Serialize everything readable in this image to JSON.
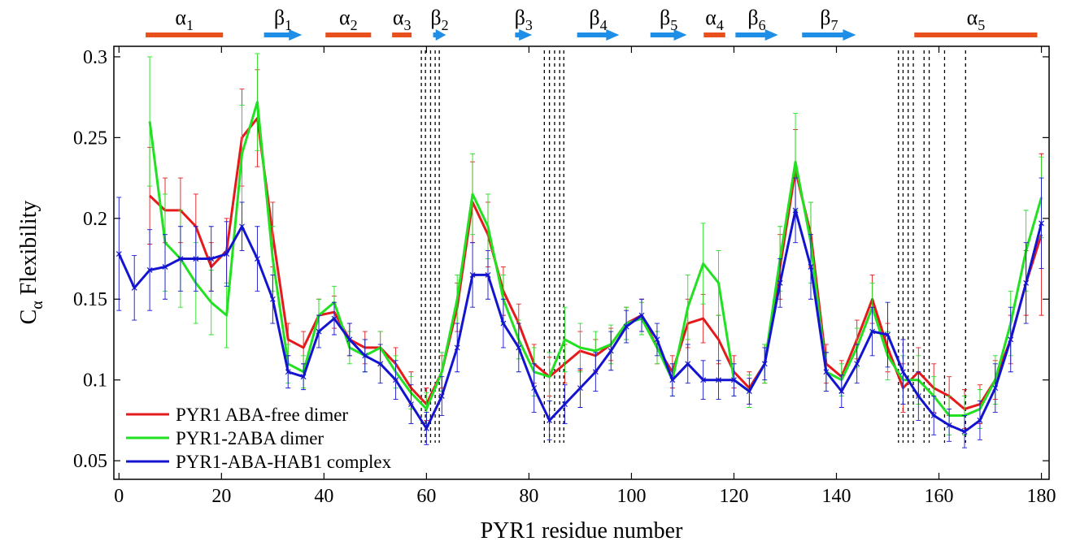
{
  "chart_data": {
    "type": "line",
    "xlabel": "PYR1 residue number",
    "ylabel": {
      "text": "C",
      "sub": "α",
      "rest": " Flexibility"
    },
    "xlim": [
      -1,
      181.5
    ],
    "ylim": [
      0.0385,
      0.3065
    ],
    "xticks": [
      0,
      20,
      40,
      60,
      80,
      100,
      120,
      140,
      160,
      180
    ],
    "yticks": [
      0.05,
      0.1,
      0.15,
      0.2,
      0.25,
      0.3
    ],
    "legend": "lower left",
    "x": [
      0,
      3,
      6,
      9,
      12,
      15,
      18,
      21,
      24,
      27,
      30,
      33,
      36,
      39,
      42,
      45,
      48,
      51,
      54,
      57,
      60,
      63,
      66,
      69,
      72,
      75,
      78,
      81,
      84,
      87,
      90,
      93,
      96,
      99,
      102,
      105,
      108,
      111,
      114,
      117,
      120,
      123,
      126,
      129,
      132,
      135,
      138,
      141,
      144,
      147,
      150,
      153,
      156,
      159,
      162,
      165,
      168,
      171,
      174,
      177,
      180
    ],
    "series": [
      {
        "name": "PYR1 ABA-free dimer",
        "color": "#e41a1c",
        "values": [
          null,
          null,
          0.214,
          0.205,
          0.205,
          0.195,
          0.17,
          0.18,
          0.25,
          0.262,
          0.19,
          0.125,
          0.12,
          0.14,
          0.142,
          0.125,
          0.12,
          0.12,
          0.11,
          0.095,
          0.085,
          0.105,
          0.145,
          0.21,
          0.19,
          0.155,
          0.135,
          0.11,
          0.102,
          0.11,
          0.118,
          0.115,
          0.122,
          0.135,
          0.14,
          0.12,
          0.105,
          0.135,
          0.138,
          0.125,
          0.105,
          0.095,
          0.11,
          0.17,
          0.23,
          0.19,
          0.11,
          0.102,
          0.125,
          0.15,
          0.12,
          0.095,
          0.105,
          0.095,
          0.09,
          0.082,
          0.085,
          0.1,
          0.125,
          0.16,
          0.19
        ],
        "errors": [
          null,
          null,
          0.03,
          0.02,
          0.02,
          0.02,
          0.015,
          0.02,
          0.03,
          0.03,
          0.02,
          0.01,
          0.01,
          0.01,
          0.01,
          0.01,
          0.01,
          0.01,
          0.01,
          0.01,
          0.01,
          0.01,
          0.015,
          0.025,
          0.02,
          0.015,
          0.012,
          0.012,
          0.012,
          0.012,
          0.012,
          0.01,
          0.01,
          0.01,
          0.01,
          0.01,
          0.01,
          0.015,
          0.015,
          0.015,
          0.01,
          0.01,
          0.012,
          0.02,
          0.025,
          0.02,
          0.012,
          0.01,
          0.012,
          0.015,
          0.015,
          0.015,
          0.015,
          0.015,
          0.012,
          0.012,
          0.012,
          0.012,
          0.015,
          0.02,
          0.05
        ]
      },
      {
        "name": "PYR1-2ABA dimer",
        "color": "#22e022",
        "values": [
          null,
          null,
          0.26,
          0.185,
          0.175,
          0.16,
          0.148,
          0.14,
          0.24,
          0.272,
          0.175,
          0.11,
          0.105,
          0.14,
          0.148,
          0.12,
          0.115,
          0.12,
          0.105,
          0.092,
          0.082,
          0.105,
          0.15,
          0.215,
          0.195,
          0.15,
          0.125,
          0.105,
          0.102,
          0.125,
          0.12,
          0.118,
          0.122,
          0.135,
          0.138,
          0.12,
          0.1,
          0.145,
          0.172,
          0.16,
          0.1,
          0.093,
          0.11,
          0.175,
          0.235,
          0.185,
          0.105,
          0.1,
          0.12,
          0.145,
          0.115,
          0.1,
          0.1,
          0.09,
          0.078,
          0.078,
          0.082,
          0.1,
          0.135,
          0.18,
          0.213
        ],
        "errors": [
          null,
          null,
          0.04,
          0.03,
          0.03,
          0.025,
          0.02,
          0.02,
          0.03,
          0.03,
          0.02,
          0.012,
          0.01,
          0.01,
          0.01,
          0.01,
          0.01,
          0.01,
          0.01,
          0.01,
          0.01,
          0.012,
          0.015,
          0.025,
          0.02,
          0.015,
          0.012,
          0.015,
          0.015,
          0.02,
          0.015,
          0.012,
          0.012,
          0.01,
          0.01,
          0.01,
          0.01,
          0.02,
          0.025,
          0.02,
          0.01,
          0.01,
          0.012,
          0.02,
          0.03,
          0.025,
          0.012,
          0.01,
          0.012,
          0.015,
          0.015,
          0.015,
          0.015,
          0.012,
          0.012,
          0.012,
          0.012,
          0.015,
          0.02,
          0.025,
          0.025
        ]
      },
      {
        "name": "PYR1-ABA-HAB1 complex",
        "color": "#1414d0",
        "values": [
          0.178,
          0.157,
          0.168,
          0.17,
          0.175,
          0.175,
          0.175,
          0.178,
          0.195,
          0.175,
          0.15,
          0.105,
          0.102,
          0.13,
          0.138,
          0.125,
          0.115,
          0.11,
          0.1,
          0.085,
          0.07,
          0.09,
          0.12,
          0.165,
          0.165,
          0.135,
          0.12,
          0.095,
          0.075,
          0.085,
          0.095,
          0.105,
          0.118,
          0.133,
          0.14,
          0.125,
          0.1,
          0.11,
          0.1,
          0.1,
          0.1,
          0.093,
          0.11,
          0.16,
          0.205,
          0.17,
          0.105,
          0.093,
          0.11,
          0.13,
          0.128,
          0.105,
          0.09,
          0.078,
          0.072,
          0.068,
          0.075,
          0.095,
          0.125,
          0.16,
          0.197
        ],
        "errors": [
          0.035,
          0.02,
          0.025,
          0.02,
          0.02,
          0.02,
          0.02,
          0.02,
          0.015,
          0.02,
          0.015,
          0.01,
          0.008,
          0.01,
          0.01,
          0.01,
          0.01,
          0.012,
          0.012,
          0.012,
          0.01,
          0.012,
          0.015,
          0.02,
          0.015,
          0.015,
          0.015,
          0.015,
          0.012,
          0.012,
          0.012,
          0.012,
          0.012,
          0.01,
          0.01,
          0.01,
          0.01,
          0.012,
          0.012,
          0.012,
          0.01,
          0.008,
          0.01,
          0.015,
          0.02,
          0.02,
          0.012,
          0.01,
          0.012,
          0.015,
          0.02,
          0.02,
          0.015,
          0.012,
          0.01,
          0.01,
          0.012,
          0.015,
          0.02,
          0.025,
          0.028
        ]
      }
    ],
    "secondary_structure": [
      {
        "symbol": "α",
        "index": "1",
        "kind": "helix",
        "start": 5.2,
        "end": 20.3
      },
      {
        "symbol": "β",
        "index": "1",
        "kind": "strand",
        "start": 28.3,
        "end": 35.7
      },
      {
        "symbol": "α",
        "index": "2",
        "kind": "helix",
        "start": 40.3,
        "end": 49.2
      },
      {
        "symbol": "α",
        "index": "3",
        "kind": "helix",
        "start": 53.3,
        "end": 57.1
      },
      {
        "symbol": "β",
        "index": "2",
        "kind": "strand",
        "start": 61.3,
        "end": 63.8
      },
      {
        "symbol": "β",
        "index": "3",
        "kind": "strand",
        "start": 77.3,
        "end": 80.6
      },
      {
        "symbol": "β",
        "index": "4",
        "kind": "strand",
        "start": 89.4,
        "end": 97.6
      },
      {
        "symbol": "β",
        "index": "5",
        "kind": "strand",
        "start": 103.7,
        "end": 110.8
      },
      {
        "symbol": "α",
        "index": "4",
        "kind": "helix",
        "start": 114.1,
        "end": 118.3
      },
      {
        "symbol": "β",
        "index": "6",
        "kind": "strand",
        "start": 120.3,
        "end": 128.6
      },
      {
        "symbol": "β",
        "index": "7",
        "kind": "strand",
        "start": 133.3,
        "end": 143.8
      },
      {
        "symbol": "α",
        "index": "5",
        "kind": "helix",
        "start": 155.2,
        "end": 179.2
      }
    ],
    "helix_color": "#e8501e",
    "strand_color": "#1e8ee6",
    "dashed_lines": [
      59,
      59.8,
      60.8,
      61.7,
      62.5,
      83,
      84,
      85,
      86,
      86.8,
      152.1,
      153,
      154,
      155,
      157.1,
      158.1,
      161.1,
      165.2
    ]
  }
}
